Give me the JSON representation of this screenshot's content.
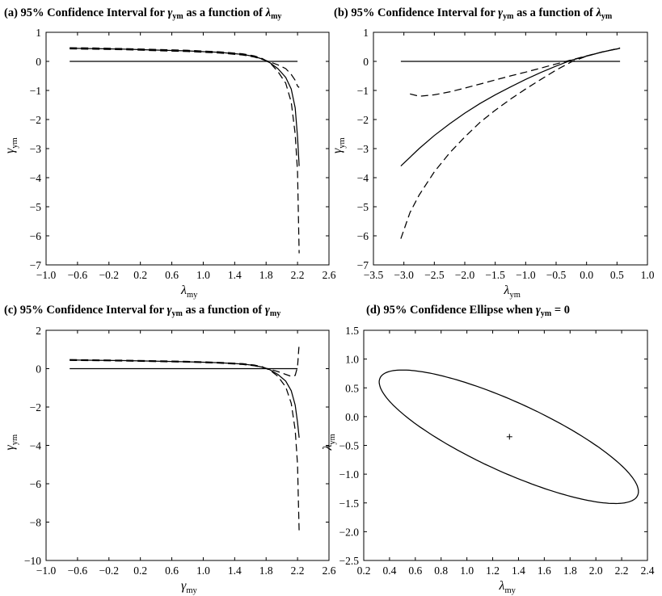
{
  "chart_data": [
    {
      "id": "a",
      "type": "line",
      "title": {
        "main": "(a) 95% Confidence Interval for ",
        "g": "γ",
        "gsub": "ym",
        "mid": " as a function of ",
        "l": "λ",
        "lsub": "my"
      },
      "xlabel": {
        "sym": "λ",
        "sub": "my"
      },
      "ylabel": {
        "sym": "γ",
        "sub": "ym"
      },
      "xlim": [
        -1.0,
        2.6
      ],
      "ylim": [
        -7,
        1
      ],
      "xticks": [
        -1.0,
        -0.6,
        -0.2,
        0.2,
        0.6,
        1.0,
        1.4,
        1.8,
        2.2,
        2.6
      ],
      "xtick_labels": [
        "−1.0",
        "−0.6",
        "−0.2",
        "0.2",
        "0.6",
        "1.0",
        "1.4",
        "1.8",
        "2.2",
        "2.6"
      ],
      "yticks": [
        1,
        0,
        -1,
        -2,
        -3,
        -4,
        -5,
        -6,
        -7
      ],
      "ytick_labels": [
        "1",
        "0",
        "−1",
        "−2",
        "−3",
        "−4",
        "−5",
        "−6",
        "−7"
      ],
      "grid": false,
      "series": [
        {
          "style": "solid",
          "x": [
            -0.7,
            2.2
          ],
          "y": [
            0,
            0
          ]
        },
        {
          "style": "solid",
          "x": [
            -0.7,
            -0.4,
            0.0,
            0.4,
            0.8,
            1.2,
            1.5,
            1.65,
            1.75,
            1.85,
            1.95,
            2.05,
            2.12,
            2.17,
            2.2,
            2.22
          ],
          "y": [
            0.45,
            0.44,
            0.42,
            0.39,
            0.36,
            0.31,
            0.24,
            0.17,
            0.08,
            -0.05,
            -0.25,
            -0.55,
            -0.95,
            -1.6,
            -2.6,
            -3.6
          ]
        },
        {
          "style": "dashed",
          "x": [
            -0.7,
            -0.4,
            0.0,
            0.4,
            0.8,
            1.2,
            1.5,
            1.65,
            1.75,
            1.85,
            1.95,
            2.05,
            2.12,
            2.17,
            2.2,
            2.21,
            2.22
          ],
          "y": [
            0.47,
            0.46,
            0.44,
            0.41,
            0.38,
            0.33,
            0.26,
            0.19,
            0.1,
            -0.05,
            -0.35,
            -0.75,
            -1.4,
            -2.5,
            -3.8,
            -5.2,
            -6.6
          ]
        },
        {
          "style": "dashed",
          "x": [
            -0.7,
            -0.4,
            0.0,
            0.4,
            0.8,
            1.2,
            1.5,
            1.65,
            1.75,
            1.85,
            1.95,
            2.05,
            2.12,
            2.17,
            2.2,
            2.22
          ],
          "y": [
            0.43,
            0.42,
            0.4,
            0.37,
            0.34,
            0.29,
            0.22,
            0.15,
            0.07,
            -0.02,
            -0.12,
            -0.25,
            -0.45,
            -0.65,
            -0.85,
            -0.9
          ]
        }
      ]
    },
    {
      "id": "b",
      "type": "line",
      "title": {
        "main": "(b) 95% Confidence Interval for ",
        "g": "γ",
        "gsub": "ym",
        "mid": " as a function of ",
        "l": "λ",
        "lsub": "ym"
      },
      "xlabel": {
        "sym": "λ",
        "sub": "ym"
      },
      "ylabel": {
        "sym": "γ",
        "sub": "ym"
      },
      "xlim": [
        -3.5,
        1.0
      ],
      "ylim": [
        -7,
        1
      ],
      "xticks": [
        -3.5,
        -3.0,
        -2.5,
        -2.0,
        -1.5,
        -1.0,
        -0.5,
        0.0,
        0.5,
        1.0
      ],
      "xtick_labels": [
        "−3.5",
        "−3.0",
        "−2.5",
        "−2.0",
        "−1.5",
        "−1.0",
        "−0.5",
        "0.0",
        "0.5",
        "1.0"
      ],
      "yticks": [
        1,
        0,
        -1,
        -2,
        -3,
        -4,
        -5,
        -6,
        -7
      ],
      "ytick_labels": [
        "1",
        "0",
        "−1",
        "−2",
        "−3",
        "−4",
        "−5",
        "−6",
        "−7"
      ],
      "grid": false,
      "series": [
        {
          "style": "solid",
          "x": [
            -3.05,
            0.55
          ],
          "y": [
            0,
            0
          ]
        },
        {
          "style": "solid",
          "x": [
            -3.05,
            -2.75,
            -2.5,
            -2.25,
            -2.0,
            -1.75,
            -1.5,
            -1.25,
            -1.0,
            -0.75,
            -0.5,
            -0.25,
            0.0,
            0.25,
            0.55
          ],
          "y": [
            -3.6,
            -3.0,
            -2.55,
            -2.15,
            -1.78,
            -1.45,
            -1.15,
            -0.88,
            -0.62,
            -0.38,
            -0.16,
            0.04,
            0.18,
            0.32,
            0.45
          ]
        },
        {
          "style": "dashed",
          "x": [
            -3.05,
            -2.9,
            -2.75,
            -2.5,
            -2.25,
            -2.0,
            -1.75,
            -1.5,
            -1.25,
            -1.0,
            -0.75,
            -0.5,
            -0.25,
            0.0,
            0.25,
            0.55
          ],
          "y": [
            -6.1,
            -5.2,
            -4.6,
            -3.8,
            -3.15,
            -2.6,
            -2.1,
            -1.68,
            -1.3,
            -0.95,
            -0.62,
            -0.3,
            -0.02,
            0.18,
            0.32,
            0.45
          ]
        },
        {
          "style": "dashed",
          "x": [
            -2.9,
            -2.75,
            -2.5,
            -2.25,
            -2.0,
            -1.75,
            -1.5,
            -1.25,
            -1.0,
            -0.75,
            -0.5,
            -0.25,
            0.0,
            0.25,
            0.55
          ],
          "y": [
            -1.12,
            -1.2,
            -1.15,
            -1.05,
            -0.92,
            -0.78,
            -0.64,
            -0.5,
            -0.37,
            -0.23,
            -0.09,
            0.05,
            0.19,
            0.32,
            0.46
          ]
        }
      ]
    },
    {
      "id": "c",
      "type": "line",
      "title": {
        "main": "(c) 95% Confidence Interval for ",
        "g": "γ",
        "gsub": "ym",
        "mid": " as a function of ",
        "l": "γ",
        "lsub": "my"
      },
      "xlabel": {
        "sym": "γ",
        "sub": "my"
      },
      "ylabel": {
        "sym": "γ",
        "sub": "ym"
      },
      "xlim": [
        -1.0,
        2.6
      ],
      "ylim": [
        -10,
        2
      ],
      "xticks": [
        -1.0,
        -0.6,
        -0.2,
        0.2,
        0.6,
        1.0,
        1.4,
        1.8,
        2.2,
        2.6
      ],
      "xtick_labels": [
        "−1.0",
        "−0.6",
        "−0.2",
        "0.2",
        "0.6",
        "1.0",
        "1.4",
        "1.8",
        "2.2",
        "2.6"
      ],
      "yticks": [
        2,
        0,
        -2,
        -4,
        -6,
        -8,
        -10
      ],
      "ytick_labels": [
        "2",
        "0",
        "−2",
        "−4",
        "−6",
        "−8",
        "−10"
      ],
      "grid": false,
      "series": [
        {
          "style": "solid",
          "x": [
            -0.7,
            2.2
          ],
          "y": [
            0,
            0
          ]
        },
        {
          "style": "solid",
          "x": [
            -0.7,
            -0.4,
            0.0,
            0.4,
            0.8,
            1.2,
            1.5,
            1.65,
            1.75,
            1.85,
            1.95,
            2.05,
            2.12,
            2.17,
            2.2,
            2.22
          ],
          "y": [
            0.45,
            0.44,
            0.42,
            0.39,
            0.36,
            0.31,
            0.24,
            0.17,
            0.08,
            -0.06,
            -0.3,
            -0.65,
            -1.15,
            -1.9,
            -2.8,
            -3.6
          ]
        },
        {
          "style": "dashed",
          "x": [
            -0.7,
            -0.4,
            0.0,
            0.4,
            0.8,
            1.2,
            1.5,
            1.65,
            1.75,
            1.85,
            1.95,
            2.05,
            2.12,
            2.17,
            2.2,
            2.21,
            2.22
          ],
          "y": [
            0.47,
            0.46,
            0.44,
            0.41,
            0.38,
            0.33,
            0.26,
            0.19,
            0.1,
            -0.08,
            -0.4,
            -0.95,
            -1.8,
            -3.2,
            -5.0,
            -6.8,
            -8.5
          ]
        },
        {
          "style": "dashed",
          "x": [
            -0.7,
            -0.4,
            0.0,
            0.4,
            0.8,
            1.2,
            1.5,
            1.65,
            1.75,
            1.85,
            1.95,
            2.05,
            2.12,
            2.17,
            2.2,
            2.21,
            2.22
          ],
          "y": [
            0.43,
            0.42,
            0.4,
            0.37,
            0.34,
            0.29,
            0.22,
            0.15,
            0.07,
            -0.03,
            -0.15,
            -0.3,
            -0.4,
            -0.35,
            0.1,
            0.7,
            1.3
          ]
        }
      ]
    },
    {
      "id": "d",
      "type": "line",
      "title": {
        "main": "(d) 95% Confidence Ellipse when ",
        "g": "γ",
        "gsub": "ym",
        "mid": " = 0",
        "l": "",
        "lsub": ""
      },
      "xlabel": {
        "sym": "λ",
        "sub": "my"
      },
      "ylabel": {
        "sym": "λ",
        "sub": "ym"
      },
      "xlim": [
        0.2,
        2.4
      ],
      "ylim": [
        -2.5,
        1.5
      ],
      "xticks": [
        0.2,
        0.4,
        0.6,
        0.8,
        1.0,
        1.2,
        1.4,
        1.6,
        1.8,
        2.0,
        2.2,
        2.4
      ],
      "xtick_labels": [
        "0.2",
        "0.4",
        "0.6",
        "0.8",
        "1.0",
        "1.2",
        "1.4",
        "1.6",
        "1.8",
        "2.0",
        "2.2",
        "2.4"
      ],
      "yticks": [
        1.5,
        1.0,
        0.5,
        0.0,
        -0.5,
        -1.0,
        -1.5,
        -2.0,
        -2.5
      ],
      "ytick_labels": [
        "1.5",
        "1.0",
        "0.5",
        "0.0",
        "−0.5",
        "−1.0",
        "−1.5",
        "−2.0",
        "−2.5"
      ],
      "grid": false,
      "ellipse": {
        "cx": 1.33,
        "cy": -0.35,
        "x_extent": [
          0.32,
          2.33
        ],
        "y_extent": [
          -1.51,
          0.81
        ],
        "x_at_ymax": 0.5,
        "x_at_ymin": 2.18
      },
      "center_marker": {
        "x": 1.33,
        "y": -0.35,
        "symbol": "+"
      }
    }
  ]
}
